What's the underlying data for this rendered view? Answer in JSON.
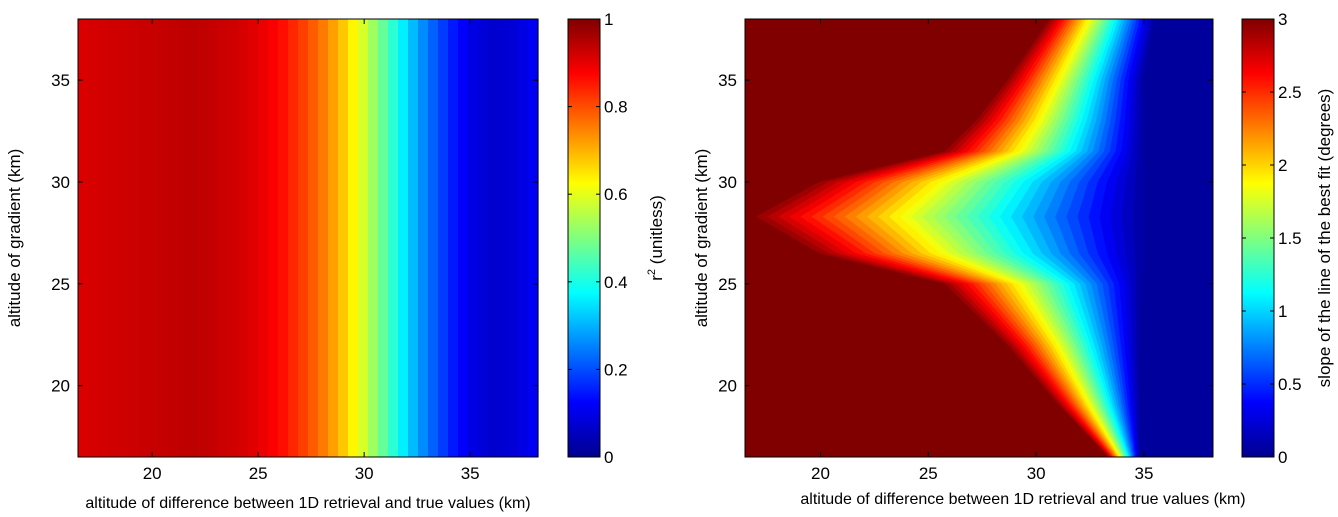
{
  "chart_data": [
    {
      "type": "heatmap",
      "subtype": "filled-contour",
      "xlabel": "altitude of difference between 1D retrieval and true values (km)",
      "ylabel": "altitude of gradient (km)",
      "xlim": [
        16.5,
        38.2
      ],
      "ylim": [
        16.5,
        38
      ],
      "x_ticks": [
        "20",
        "25",
        "30",
        "35"
      ],
      "y_ticks": [
        "20",
        "25",
        "30",
        "35"
      ],
      "colorbar": {
        "label_main": "r",
        "label_sup": "2",
        "label_rest": " (unitless)",
        "min": 0,
        "max": 1,
        "ticks": [
          "0",
          "0.2",
          "0.4",
          "0.6",
          "0.8",
          "1"
        ],
        "colormap": "jet"
      },
      "field_profile_x": [
        16.5,
        18,
        20,
        21,
        22,
        23,
        24,
        25,
        26,
        27,
        28,
        29,
        30,
        31,
        32,
        33,
        34,
        35,
        36,
        37,
        38.2
      ],
      "field_profile_values": [
        0.91,
        0.92,
        0.93,
        0.935,
        0.94,
        0.93,
        0.92,
        0.9,
        0.87,
        0.82,
        0.76,
        0.68,
        0.58,
        0.46,
        0.34,
        0.24,
        0.16,
        0.1,
        0.07,
        0.08,
        0.12
      ],
      "field_varies_along": "x"
    },
    {
      "type": "heatmap",
      "subtype": "filled-contour",
      "xlabel": "altitude of difference between 1D retrieval and true values (km)",
      "ylabel": "altitude of gradient (km)",
      "xlim": [
        16.5,
        38.2
      ],
      "ylim": [
        16.5,
        38
      ],
      "x_ticks": [
        "20",
        "25",
        "30",
        "35"
      ],
      "y_ticks": [
        "20",
        "25",
        "30",
        "35"
      ],
      "colorbar": {
        "label": "slope of the line of the best fit (degrees)",
        "min": 0,
        "max": 3,
        "ticks": [
          "0",
          "0.5",
          "1",
          "1.5",
          "2",
          "2.5",
          "3"
        ],
        "colormap": "jet"
      },
      "contour_knots_y": [
        16.5,
        19,
        22,
        25,
        26.5,
        28.3,
        30,
        31.5,
        33,
        35,
        38
      ],
      "contour_knots_x_at_value_3": [
        33.3,
        31,
        28.5,
        25.5,
        19.5,
        16.5,
        19.5,
        25.5,
        27,
        28.5,
        30.5
      ],
      "contour_knots_x_at_value_0": [
        34.8,
        34.8,
        34.8,
        34.9,
        35,
        35,
        35,
        35,
        35,
        35,
        35.5
      ],
      "value_above_left": 3,
      "value_beyond_right": 0
    }
  ]
}
